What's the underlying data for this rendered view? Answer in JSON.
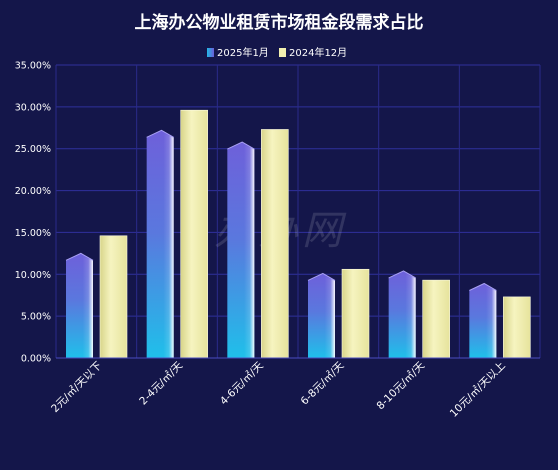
{
  "chart_data": {
    "type": "bar",
    "title": "上海办公物业租赁市场租金段需求占比",
    "xlabel": "",
    "ylabel": "",
    "categories": [
      "2元/㎡/天以下",
      "2-4元/㎡/天",
      "4-6元/㎡/天",
      "6-8元/㎡/天",
      "8-10元/㎡/天",
      "10元/㎡/天以上"
    ],
    "series": [
      {
        "name": "2025年1月",
        "values": [
          12.5,
          27.2,
          25.8,
          10.1,
          10.4,
          8.9
        ]
      },
      {
        "name": "2024年12月",
        "values": [
          14.6,
          29.6,
          27.3,
          10.6,
          9.3,
          7.3
        ]
      }
    ],
    "ylim": [
      0,
      35
    ],
    "yticks": [
      "0.00%",
      "5.00%",
      "10.00%",
      "15.00%",
      "20.00%",
      "25.00%",
      "30.00%",
      "35.00%"
    ],
    "ytick_values": [
      0,
      5,
      10,
      15,
      20,
      25,
      30,
      35
    ],
    "grid": true,
    "legend_position": "top-center"
  },
  "watermark": "办办网",
  "colors": {
    "background": "#14164a",
    "grid": "#2e2f9a",
    "series1_top": "#6a5ed8",
    "series1_bottom": "#22b8e6",
    "series2": "#f2f0b0"
  }
}
